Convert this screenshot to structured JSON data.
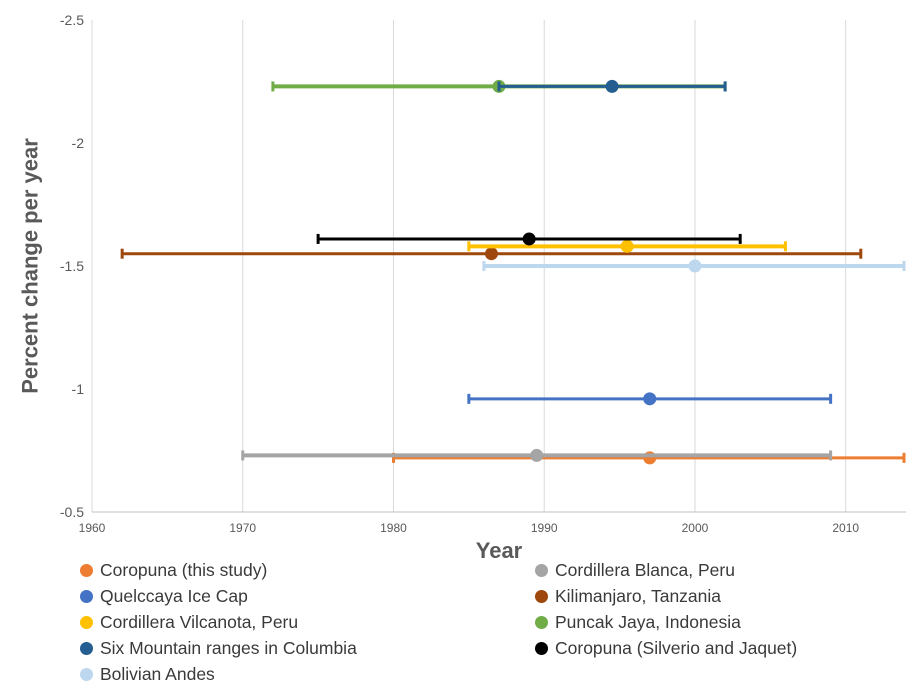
{
  "chart_data": {
    "type": "scatter",
    "xlabel": "Year",
    "ylabel": "Percent change per year",
    "xlim": [
      1960,
      2014
    ],
    "ylim": [
      -0.5,
      -2.5
    ],
    "y_inverted": true,
    "x_ticks": [
      "1960",
      "1970",
      "1980",
      "1990",
      "2000",
      "2010"
    ],
    "y_ticks": [
      "-2.5",
      "-2",
      "-1.5",
      "-1",
      "-0.5"
    ],
    "grid": "vertical",
    "legend_position": "bottom",
    "series": [
      {
        "name": "Coropuna (this study)",
        "color": "#ED7D31",
        "x": 1997,
        "y": -0.72,
        "xerr": [
          1980,
          2014
        ]
      },
      {
        "name": "Cordillera Blanca, Peru",
        "color": "#A5A5A5",
        "x": 1989.5,
        "y": -0.73,
        "xerr": [
          1970,
          2009
        ]
      },
      {
        "name": "Quelccaya Ice Cap",
        "color": "#4472C4",
        "x": 1997,
        "y": -0.96,
        "xerr": [
          1985,
          2009
        ]
      },
      {
        "name": "Kilimanjaro, Tanzania",
        "color": "#9E480E",
        "x": 1986.5,
        "y": -1.55,
        "xerr": [
          1962,
          2011
        ]
      },
      {
        "name": "Cordillera Vilcanota, Peru",
        "color": "#FFC000",
        "x": 1995.5,
        "y": -1.58,
        "xerr": [
          1985,
          2006
        ]
      },
      {
        "name": "Puncak Jaya, Indonesia",
        "color": "#70AD47",
        "x": 1987,
        "y": -2.23,
        "xerr": [
          1972,
          2002
        ]
      },
      {
        "name": "Six Mountain ranges in Columbia",
        "color": "#255E91",
        "x": 1994.5,
        "y": -2.23,
        "xerr": [
          1987,
          2002
        ]
      },
      {
        "name": "Coropuna (Silverio and Jaquet)",
        "color": "#000000",
        "x": 1989,
        "y": -1.61,
        "xerr": [
          1975,
          2003
        ]
      },
      {
        "name": "Bolivian Andes",
        "color": "#BDD7EE",
        "x": 2000,
        "y": -1.5,
        "xerr": [
          1986,
          2014
        ]
      }
    ]
  }
}
